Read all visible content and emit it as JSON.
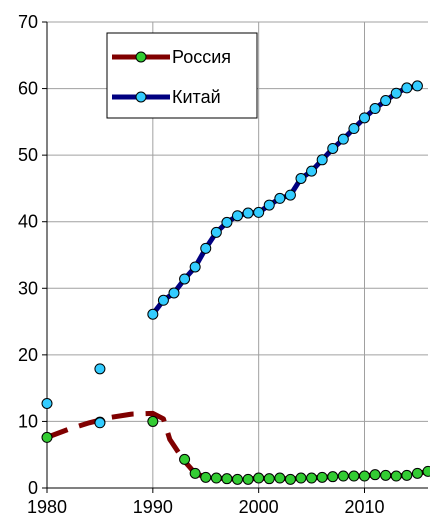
{
  "chart_data": {
    "type": "line",
    "title": "",
    "xlabel": "",
    "ylabel": "",
    "xlim": [
      1980,
      2016
    ],
    "ylim": [
      0,
      70
    ],
    "x_ticks": [
      1980,
      1990,
      2000,
      2010
    ],
    "y_ticks": [
      0,
      10,
      20,
      30,
      40,
      50,
      60,
      70
    ],
    "grid": true,
    "legend_position": "top-center",
    "series": [
      {
        "name": "Россия",
        "line_color": "#800000",
        "marker_color": "#33cc33",
        "line_style": "dashed",
        "line_points": [
          {
            "x": 1980,
            "y": 7.6
          },
          {
            "x": 1982,
            "y": 8.8
          },
          {
            "x": 1984,
            "y": 9.8
          },
          {
            "x": 1986,
            "y": 10.6
          },
          {
            "x": 1988,
            "y": 11.1
          },
          {
            "x": 1990,
            "y": 11.2
          },
          {
            "x": 1991,
            "y": 10.4
          },
          {
            "x": 1991.6,
            "y": 7.3
          },
          {
            "x": 1992.9,
            "y": 4.2
          },
          {
            "x": 1994,
            "y": 2.2
          },
          {
            "x": 1995,
            "y": 1.6
          },
          {
            "x": 1996,
            "y": 1.5
          },
          {
            "x": 1997,
            "y": 1.4
          },
          {
            "x": 1998,
            "y": 1.3
          },
          {
            "x": 1999,
            "y": 1.3
          },
          {
            "x": 2000,
            "y": 1.5
          },
          {
            "x": 2001,
            "y": 1.4
          },
          {
            "x": 2002,
            "y": 1.5
          },
          {
            "x": 2003,
            "y": 1.3
          },
          {
            "x": 2004,
            "y": 1.5
          },
          {
            "x": 2005,
            "y": 1.5
          },
          {
            "x": 2006,
            "y": 1.6
          },
          {
            "x": 2007,
            "y": 1.7
          },
          {
            "x": 2008,
            "y": 1.8
          },
          {
            "x": 2009,
            "y": 1.8
          },
          {
            "x": 2010,
            "y": 1.8
          },
          {
            "x": 2011,
            "y": 2.0
          },
          {
            "x": 2012,
            "y": 1.9
          },
          {
            "x": 2013,
            "y": 1.8
          },
          {
            "x": 2014,
            "y": 1.9
          },
          {
            "x": 2015,
            "y": 2.2
          },
          {
            "x": 2016,
            "y": 2.5
          }
        ],
        "markers": [
          {
            "x": 1980,
            "y": 7.6
          },
          {
            "x": 1985,
            "y": 9.9
          },
          {
            "x": 1990,
            "y": 10.0
          },
          {
            "x": 1993,
            "y": 4.3
          },
          {
            "x": 1994,
            "y": 2.2
          },
          {
            "x": 1995,
            "y": 1.6
          },
          {
            "x": 1996,
            "y": 1.5
          },
          {
            "x": 1997,
            "y": 1.4
          },
          {
            "x": 1998,
            "y": 1.3
          },
          {
            "x": 1999,
            "y": 1.3
          },
          {
            "x": 2000,
            "y": 1.5
          },
          {
            "x": 2001,
            "y": 1.4
          },
          {
            "x": 2002,
            "y": 1.5
          },
          {
            "x": 2003,
            "y": 1.3
          },
          {
            "x": 2004,
            "y": 1.5
          },
          {
            "x": 2005,
            "y": 1.5
          },
          {
            "x": 2006,
            "y": 1.6
          },
          {
            "x": 2007,
            "y": 1.7
          },
          {
            "x": 2008,
            "y": 1.8
          },
          {
            "x": 2009,
            "y": 1.8
          },
          {
            "x": 2010,
            "y": 1.8
          },
          {
            "x": 2011,
            "y": 2.0
          },
          {
            "x": 2012,
            "y": 1.9
          },
          {
            "x": 2013,
            "y": 1.8
          },
          {
            "x": 2014,
            "y": 1.9
          },
          {
            "x": 2015,
            "y": 2.2
          },
          {
            "x": 2016,
            "y": 2.5
          }
        ]
      },
      {
        "name": "Китай",
        "line_color": "#000080",
        "marker_color": "#33ccff",
        "line_style": "solid",
        "line_points": [
          {
            "x": 1990,
            "y": 26.1
          },
          {
            "x": 1991,
            "y": 28.2
          },
          {
            "x": 1992,
            "y": 29.3
          },
          {
            "x": 1993,
            "y": 31.4
          },
          {
            "x": 1994,
            "y": 33.2
          },
          {
            "x": 1995,
            "y": 36.0
          },
          {
            "x": 1996,
            "y": 38.4
          },
          {
            "x": 1997,
            "y": 39.9
          },
          {
            "x": 1998,
            "y": 40.9
          },
          {
            "x": 1999,
            "y": 41.3
          },
          {
            "x": 2000,
            "y": 41.4
          },
          {
            "x": 2001,
            "y": 42.5
          },
          {
            "x": 2002,
            "y": 43.5
          },
          {
            "x": 2003,
            "y": 44.0
          },
          {
            "x": 2004,
            "y": 46.5
          },
          {
            "x": 2005,
            "y": 47.6
          },
          {
            "x": 2006,
            "y": 49.3
          },
          {
            "x": 2007,
            "y": 51.0
          },
          {
            "x": 2008,
            "y": 52.4
          },
          {
            "x": 2009,
            "y": 54.0
          },
          {
            "x": 2010,
            "y": 55.6
          },
          {
            "x": 2011,
            "y": 57.0
          },
          {
            "x": 2012,
            "y": 58.2
          },
          {
            "x": 2013,
            "y": 59.3
          },
          {
            "x": 2014,
            "y": 60.1
          },
          {
            "x": 2015,
            "y": 60.4
          }
        ],
        "markers": [
          {
            "x": 1980,
            "y": 12.7
          },
          {
            "x": 1985,
            "y": 17.9
          },
          {
            "x": 1985,
            "y": 9.8
          },
          {
            "x": 1990,
            "y": 26.1
          },
          {
            "x": 1991,
            "y": 28.2
          },
          {
            "x": 1992,
            "y": 29.3
          },
          {
            "x": 1993,
            "y": 31.4
          },
          {
            "x": 1994,
            "y": 33.2
          },
          {
            "x": 1995,
            "y": 36.0
          },
          {
            "x": 1996,
            "y": 38.4
          },
          {
            "x": 1997,
            "y": 39.9
          },
          {
            "x": 1998,
            "y": 40.9
          },
          {
            "x": 1999,
            "y": 41.3
          },
          {
            "x": 2000,
            "y": 41.4
          },
          {
            "x": 2001,
            "y": 42.5
          },
          {
            "x": 2002,
            "y": 43.5
          },
          {
            "x": 2003,
            "y": 44.0
          },
          {
            "x": 2004,
            "y": 46.5
          },
          {
            "x": 2005,
            "y": 47.6
          },
          {
            "x": 2006,
            "y": 49.3
          },
          {
            "x": 2007,
            "y": 51.0
          },
          {
            "x": 2008,
            "y": 52.4
          },
          {
            "x": 2009,
            "y": 54.0
          },
          {
            "x": 2010,
            "y": 55.6
          },
          {
            "x": 2011,
            "y": 57.0
          },
          {
            "x": 2012,
            "y": 58.2
          },
          {
            "x": 2013,
            "y": 59.3
          },
          {
            "x": 2014,
            "y": 60.1
          },
          {
            "x": 2015,
            "y": 60.4
          }
        ]
      }
    ]
  }
}
